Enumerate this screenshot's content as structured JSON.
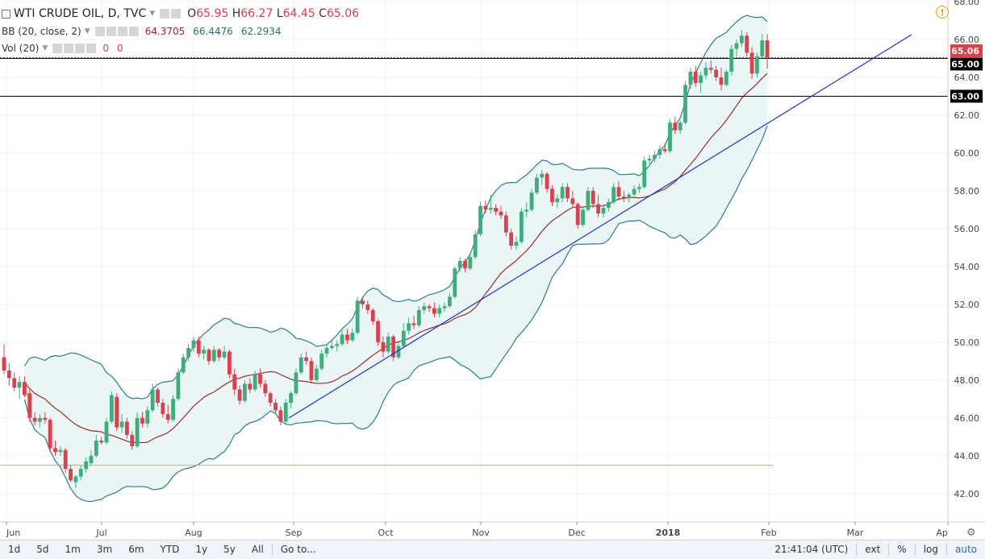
{
  "header": {
    "symbol_title": "WTI CRUDE OIL, D, TVC",
    "ohlc": {
      "o_label": "O",
      "o": "65.95",
      "h_label": "H",
      "h": "66.27",
      "l_label": "L",
      "l": "64.45",
      "c_label": "C",
      "c": "65.06"
    },
    "bb": {
      "label": "BB (20, close, 2)",
      "basis": "64.3705",
      "upper": "66.4476",
      "lower": "62.2934"
    },
    "vol": {
      "label": "Vol (20)",
      "v1": "0",
      "v2": "0"
    }
  },
  "toolbar": {
    "ranges": [
      "1d",
      "5d",
      "1m",
      "3m",
      "6m",
      "YTD",
      "1y",
      "5y",
      "All"
    ],
    "goto": "Go to...",
    "time": "21:41:04 (UTC)",
    "ext": "ext",
    "pct": "%",
    "log": "log",
    "auto": "auto"
  },
  "colors": {
    "up": "#3cae7c",
    "down": "#e23d4a",
    "band_fill": "#e9f6f5",
    "band_line": "#2a7f8a",
    "basis": "#9b2d24",
    "trend": "#1a2fdc",
    "support": "#f4a261",
    "accent": "#2962ff"
  },
  "chart_data": {
    "type": "candlestick",
    "title": "WTI CRUDE OIL, D, TVC",
    "y_ticks": [
      "68.00",
      "66.00",
      "64.00",
      "62.00",
      "60.00",
      "58.00",
      "56.00",
      "54.00",
      "52.00",
      "50.00",
      "48.00",
      "46.00",
      "44.00",
      "42.00"
    ],
    "ylim": [
      40.5,
      68.0
    ],
    "x_ticks": [
      "Jun",
      "Jul",
      "Aug",
      "Sep",
      "Oct",
      "Nov",
      "Dec",
      "2018",
      "Feb",
      "Mar",
      "Ap"
    ],
    "price_labels": [
      "65.06",
      "65.00",
      "63.00"
    ],
    "horizontal_lines": [
      65.0,
      63.0,
      43.5
    ],
    "grid": true,
    "candles": [
      {
        "o": 49.2,
        "h": 49.9,
        "l": 48.3,
        "c": 48.5
      },
      {
        "o": 48.5,
        "h": 48.9,
        "l": 47.7,
        "c": 48.1
      },
      {
        "o": 48.1,
        "h": 48.4,
        "l": 47.4,
        "c": 47.6
      },
      {
        "o": 47.6,
        "h": 48.2,
        "l": 47.0,
        "c": 47.9
      },
      {
        "o": 47.9,
        "h": 48.2,
        "l": 47.1,
        "c": 47.2
      },
      {
        "o": 47.3,
        "h": 47.5,
        "l": 45.8,
        "c": 46.0
      },
      {
        "o": 46.0,
        "h": 46.3,
        "l": 45.6,
        "c": 45.8
      },
      {
        "o": 45.8,
        "h": 46.2,
        "l": 45.5,
        "c": 46.0
      },
      {
        "o": 46.0,
        "h": 46.3,
        "l": 45.7,
        "c": 45.9
      },
      {
        "o": 45.9,
        "h": 46.0,
        "l": 44.2,
        "c": 44.4
      },
      {
        "o": 44.4,
        "h": 44.8,
        "l": 44.0,
        "c": 44.2
      },
      {
        "o": 44.2,
        "h": 44.5,
        "l": 44.0,
        "c": 44.3
      },
      {
        "o": 44.3,
        "h": 44.4,
        "l": 43.1,
        "c": 43.3
      },
      {
        "o": 43.3,
        "h": 43.5,
        "l": 42.6,
        "c": 42.7
      },
      {
        "o": 42.6,
        "h": 43.0,
        "l": 42.3,
        "c": 42.9
      },
      {
        "o": 42.9,
        "h": 43.5,
        "l": 42.7,
        "c": 43.3
      },
      {
        "o": 43.3,
        "h": 43.9,
        "l": 43.1,
        "c": 43.7
      },
      {
        "o": 43.6,
        "h": 44.3,
        "l": 43.5,
        "c": 44.0
      },
      {
        "o": 44.0,
        "h": 45.1,
        "l": 43.9,
        "c": 44.8
      },
      {
        "o": 44.8,
        "h": 45.0,
        "l": 44.6,
        "c": 44.7
      },
      {
        "o": 44.7,
        "h": 46.0,
        "l": 44.6,
        "c": 45.8
      },
      {
        "o": 45.8,
        "h": 47.4,
        "l": 45.7,
        "c": 47.2
      },
      {
        "o": 47.1,
        "h": 47.3,
        "l": 45.3,
        "c": 45.5
      },
      {
        "o": 45.5,
        "h": 46.2,
        "l": 45.2,
        "c": 45.8
      },
      {
        "o": 45.8,
        "h": 46.0,
        "l": 44.9,
        "c": 45.1
      },
      {
        "o": 45.1,
        "h": 45.3,
        "l": 44.3,
        "c": 44.5
      },
      {
        "o": 44.5,
        "h": 46.3,
        "l": 44.4,
        "c": 46.0
      },
      {
        "o": 46.0,
        "h": 46.3,
        "l": 45.5,
        "c": 45.7
      },
      {
        "o": 45.7,
        "h": 46.6,
        "l": 45.5,
        "c": 46.4
      },
      {
        "o": 46.4,
        "h": 47.8,
        "l": 46.3,
        "c": 47.5
      },
      {
        "o": 47.5,
        "h": 47.6,
        "l": 46.6,
        "c": 46.8
      },
      {
        "o": 46.8,
        "h": 47.0,
        "l": 46.0,
        "c": 46.2
      },
      {
        "o": 46.2,
        "h": 46.7,
        "l": 45.7,
        "c": 45.9
      },
      {
        "o": 45.9,
        "h": 47.2,
        "l": 45.8,
        "c": 47.0
      },
      {
        "o": 47.0,
        "h": 48.6,
        "l": 46.9,
        "c": 48.4
      },
      {
        "o": 48.4,
        "h": 49.4,
        "l": 48.3,
        "c": 49.2
      },
      {
        "o": 49.2,
        "h": 49.9,
        "l": 49.0,
        "c": 49.7
      },
      {
        "o": 49.7,
        "h": 50.3,
        "l": 49.5,
        "c": 50.1
      },
      {
        "o": 50.1,
        "h": 50.3,
        "l": 49.2,
        "c": 49.4
      },
      {
        "o": 49.4,
        "h": 49.8,
        "l": 49.1,
        "c": 49.6
      },
      {
        "o": 49.6,
        "h": 49.7,
        "l": 48.8,
        "c": 49.0
      },
      {
        "o": 49.0,
        "h": 49.8,
        "l": 48.9,
        "c": 49.6
      },
      {
        "o": 49.6,
        "h": 49.7,
        "l": 49.0,
        "c": 49.2
      },
      {
        "o": 49.2,
        "h": 49.8,
        "l": 49.1,
        "c": 49.5
      },
      {
        "o": 49.5,
        "h": 49.6,
        "l": 48.1,
        "c": 48.3
      },
      {
        "o": 48.3,
        "h": 48.6,
        "l": 47.2,
        "c": 47.5
      },
      {
        "o": 47.5,
        "h": 47.7,
        "l": 46.7,
        "c": 46.9
      },
      {
        "o": 46.9,
        "h": 48.0,
        "l": 46.8,
        "c": 47.8
      },
      {
        "o": 47.8,
        "h": 48.1,
        "l": 47.3,
        "c": 47.5
      },
      {
        "o": 47.5,
        "h": 48.5,
        "l": 47.4,
        "c": 48.3
      },
      {
        "o": 48.3,
        "h": 48.6,
        "l": 47.6,
        "c": 47.8
      },
      {
        "o": 47.8,
        "h": 48.0,
        "l": 47.1,
        "c": 47.3
      },
      {
        "o": 47.3,
        "h": 47.4,
        "l": 46.6,
        "c": 46.8
      },
      {
        "o": 46.8,
        "h": 47.0,
        "l": 46.2,
        "c": 46.4
      },
      {
        "o": 46.4,
        "h": 46.6,
        "l": 45.6,
        "c": 45.8
      },
      {
        "o": 45.8,
        "h": 47.0,
        "l": 45.7,
        "c": 46.8
      },
      {
        "o": 46.8,
        "h": 47.4,
        "l": 46.5,
        "c": 47.3
      },
      {
        "o": 47.3,
        "h": 48.6,
        "l": 47.2,
        "c": 48.4
      },
      {
        "o": 48.4,
        "h": 49.4,
        "l": 48.3,
        "c": 49.2
      },
      {
        "o": 49.2,
        "h": 49.5,
        "l": 48.8,
        "c": 49.0
      },
      {
        "o": 49.0,
        "h": 49.2,
        "l": 47.8,
        "c": 48.0
      },
      {
        "o": 48.0,
        "h": 48.8,
        "l": 47.9,
        "c": 48.6
      },
      {
        "o": 48.6,
        "h": 49.6,
        "l": 48.5,
        "c": 49.4
      },
      {
        "o": 49.4,
        "h": 49.9,
        "l": 49.2,
        "c": 49.7
      },
      {
        "o": 49.7,
        "h": 50.1,
        "l": 49.6,
        "c": 49.8
      },
      {
        "o": 49.8,
        "h": 50.1,
        "l": 49.5,
        "c": 49.9
      },
      {
        "o": 49.9,
        "h": 50.6,
        "l": 49.8,
        "c": 50.4
      },
      {
        "o": 50.4,
        "h": 50.7,
        "l": 49.9,
        "c": 50.1
      },
      {
        "o": 50.1,
        "h": 50.7,
        "l": 50.0,
        "c": 50.5
      },
      {
        "o": 50.5,
        "h": 52.4,
        "l": 50.4,
        "c": 52.2
      },
      {
        "o": 52.2,
        "h": 52.4,
        "l": 51.8,
        "c": 52.0
      },
      {
        "o": 52.0,
        "h": 52.2,
        "l": 51.5,
        "c": 51.7
      },
      {
        "o": 51.7,
        "h": 51.8,
        "l": 50.9,
        "c": 51.1
      },
      {
        "o": 51.1,
        "h": 51.2,
        "l": 49.8,
        "c": 50.0
      },
      {
        "o": 50.0,
        "h": 50.3,
        "l": 49.2,
        "c": 49.5
      },
      {
        "o": 49.5,
        "h": 50.5,
        "l": 49.4,
        "c": 50.3
      },
      {
        "o": 50.3,
        "h": 50.4,
        "l": 49.0,
        "c": 49.2
      },
      {
        "o": 49.2,
        "h": 50.0,
        "l": 49.1,
        "c": 49.8
      },
      {
        "o": 49.8,
        "h": 51.0,
        "l": 49.7,
        "c": 50.6
      },
      {
        "o": 50.6,
        "h": 51.3,
        "l": 50.4,
        "c": 51.0
      },
      {
        "o": 51.0,
        "h": 51.4,
        "l": 50.7,
        "c": 50.9
      },
      {
        "o": 50.9,
        "h": 51.9,
        "l": 50.8,
        "c": 51.7
      },
      {
        "o": 51.7,
        "h": 52.1,
        "l": 51.5,
        "c": 51.9
      },
      {
        "o": 51.9,
        "h": 52.0,
        "l": 51.6,
        "c": 51.8
      },
      {
        "o": 51.8,
        "h": 52.1,
        "l": 51.3,
        "c": 51.5
      },
      {
        "o": 51.5,
        "h": 52.0,
        "l": 51.3,
        "c": 51.8
      },
      {
        "o": 51.8,
        "h": 52.1,
        "l": 51.6,
        "c": 51.9
      },
      {
        "o": 51.9,
        "h": 52.6,
        "l": 51.8,
        "c": 52.4
      },
      {
        "o": 52.4,
        "h": 54.0,
        "l": 52.3,
        "c": 53.9
      },
      {
        "o": 53.9,
        "h": 54.5,
        "l": 53.7,
        "c": 54.3
      },
      {
        "o": 54.3,
        "h": 54.4,
        "l": 53.7,
        "c": 53.9
      },
      {
        "o": 53.9,
        "h": 54.7,
        "l": 53.8,
        "c": 54.5
      },
      {
        "o": 54.5,
        "h": 55.9,
        "l": 54.4,
        "c": 55.7
      },
      {
        "o": 55.7,
        "h": 57.4,
        "l": 55.6,
        "c": 57.2
      },
      {
        "o": 57.2,
        "h": 57.5,
        "l": 56.8,
        "c": 57.0
      },
      {
        "o": 57.0,
        "h": 57.8,
        "l": 56.8,
        "c": 57.1
      },
      {
        "o": 57.1,
        "h": 57.3,
        "l": 56.7,
        "c": 56.9
      },
      {
        "o": 56.9,
        "h": 57.2,
        "l": 56.5,
        "c": 56.7
      },
      {
        "o": 56.7,
        "h": 56.9,
        "l": 55.6,
        "c": 55.8
      },
      {
        "o": 55.8,
        "h": 56.0,
        "l": 54.9,
        "c": 55.1
      },
      {
        "o": 55.1,
        "h": 55.6,
        "l": 54.9,
        "c": 55.3
      },
      {
        "o": 55.3,
        "h": 57.1,
        "l": 55.2,
        "c": 56.9
      },
      {
        "o": 56.9,
        "h": 57.4,
        "l": 56.6,
        "c": 57.0
      },
      {
        "o": 57.0,
        "h": 58.1,
        "l": 56.9,
        "c": 57.9
      },
      {
        "o": 57.9,
        "h": 58.9,
        "l": 57.8,
        "c": 58.7
      },
      {
        "o": 58.7,
        "h": 59.1,
        "l": 58.3,
        "c": 58.9
      },
      {
        "o": 58.9,
        "h": 59.0,
        "l": 57.9,
        "c": 58.1
      },
      {
        "o": 58.1,
        "h": 58.3,
        "l": 57.2,
        "c": 57.4
      },
      {
        "o": 57.4,
        "h": 57.8,
        "l": 57.1,
        "c": 57.6
      },
      {
        "o": 57.6,
        "h": 58.4,
        "l": 57.4,
        "c": 58.2
      },
      {
        "o": 58.2,
        "h": 58.4,
        "l": 57.4,
        "c": 57.6
      },
      {
        "o": 57.6,
        "h": 58.0,
        "l": 57.1,
        "c": 57.3
      },
      {
        "o": 57.3,
        "h": 57.4,
        "l": 56.0,
        "c": 56.2
      },
      {
        "o": 56.2,
        "h": 57.2,
        "l": 56.1,
        "c": 57.0
      },
      {
        "o": 57.0,
        "h": 58.2,
        "l": 56.9,
        "c": 58.0
      },
      {
        "o": 58.0,
        "h": 58.2,
        "l": 57.1,
        "c": 57.3
      },
      {
        "o": 57.3,
        "h": 57.8,
        "l": 56.6,
        "c": 56.8
      },
      {
        "o": 56.8,
        "h": 57.3,
        "l": 56.6,
        "c": 57.1
      },
      {
        "o": 57.1,
        "h": 57.6,
        "l": 56.9,
        "c": 57.4
      },
      {
        "o": 57.4,
        "h": 58.4,
        "l": 57.3,
        "c": 58.2
      },
      {
        "o": 58.2,
        "h": 58.5,
        "l": 57.5,
        "c": 57.7
      },
      {
        "o": 57.7,
        "h": 58.0,
        "l": 57.4,
        "c": 57.6
      },
      {
        "o": 57.6,
        "h": 57.9,
        "l": 57.4,
        "c": 57.8
      },
      {
        "o": 57.8,
        "h": 58.3,
        "l": 57.7,
        "c": 58.1
      },
      {
        "o": 58.1,
        "h": 58.4,
        "l": 57.9,
        "c": 58.2
      },
      {
        "o": 58.2,
        "h": 59.8,
        "l": 58.1,
        "c": 59.6
      },
      {
        "o": 59.6,
        "h": 59.9,
        "l": 59.3,
        "c": 59.7
      },
      {
        "o": 59.7,
        "h": 60.1,
        "l": 59.5,
        "c": 59.9
      },
      {
        "o": 59.9,
        "h": 60.4,
        "l": 59.7,
        "c": 60.2
      },
      {
        "o": 60.2,
        "h": 60.5,
        "l": 60.0,
        "c": 60.1
      },
      {
        "o": 60.1,
        "h": 61.8,
        "l": 60.0,
        "c": 61.6
      },
      {
        "o": 61.6,
        "h": 61.9,
        "l": 61.0,
        "c": 61.2
      },
      {
        "o": 61.2,
        "h": 61.7,
        "l": 61.0,
        "c": 61.6
      },
      {
        "o": 61.6,
        "h": 63.8,
        "l": 61.5,
        "c": 63.6
      },
      {
        "o": 63.6,
        "h": 64.5,
        "l": 63.4,
        "c": 64.3
      },
      {
        "o": 64.3,
        "h": 64.6,
        "l": 63.5,
        "c": 63.7
      },
      {
        "o": 63.7,
        "h": 64.3,
        "l": 63.2,
        "c": 64.1
      },
      {
        "o": 64.1,
        "h": 64.8,
        "l": 63.9,
        "c": 64.5
      },
      {
        "o": 64.5,
        "h": 64.9,
        "l": 64.2,
        "c": 64.4
      },
      {
        "o": 64.4,
        "h": 64.6,
        "l": 63.8,
        "c": 64.0
      },
      {
        "o": 64.0,
        "h": 64.5,
        "l": 63.3,
        "c": 63.6
      },
      {
        "o": 63.6,
        "h": 64.4,
        "l": 63.5,
        "c": 64.3
      },
      {
        "o": 64.3,
        "h": 65.7,
        "l": 64.1,
        "c": 65.5
      },
      {
        "o": 65.5,
        "h": 66.0,
        "l": 65.1,
        "c": 65.8
      },
      {
        "o": 65.8,
        "h": 66.5,
        "l": 65.6,
        "c": 66.2
      },
      {
        "o": 66.2,
        "h": 66.4,
        "l": 65.1,
        "c": 65.3
      },
      {
        "o": 65.3,
        "h": 65.6,
        "l": 63.9,
        "c": 64.2
      },
      {
        "o": 64.2,
        "h": 65.3,
        "l": 64.0,
        "c": 65.1
      },
      {
        "o": 65.1,
        "h": 66.3,
        "l": 65.0,
        "c": 65.95
      },
      {
        "o": 65.95,
        "h": 66.27,
        "l": 64.45,
        "c": 65.06
      }
    ]
  }
}
